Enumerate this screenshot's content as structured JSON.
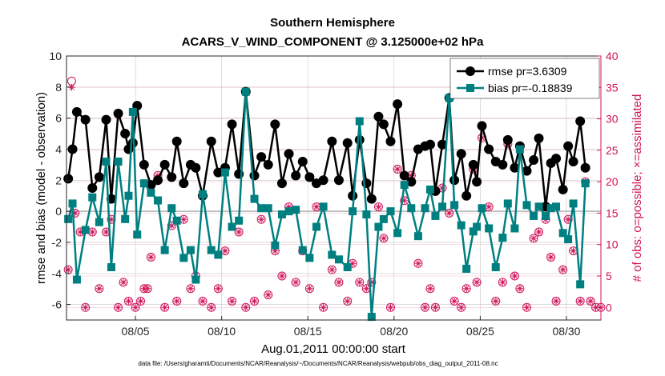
{
  "chart_data": {
    "type": "line",
    "title": "Southern Hemisphere",
    "subtitle": "ACARS_V_WIND_COMPONENT @ 3.125000e+02 hPa",
    "xlabel": "Aug.01,2011 00:00:00 start",
    "ylabel": "rmse and bias (model - observation)",
    "y2label": "# of obs: o=possible; ×=assimilated",
    "footnote": "data file: /Users/gharamti/Documents/NCAR/Reanalysis/~/Documents/NCAR/Reanalysis/webpub/obs_diag_output_2011-08.nc",
    "xlim": [
      1,
      32
    ],
    "ylim": [
      -7,
      10
    ],
    "y2lim": [
      -2,
      40
    ],
    "xticks": [
      5,
      10,
      15,
      20,
      25,
      30
    ],
    "xticklabels": [
      "08/05",
      "08/10",
      "08/15",
      "08/20",
      "08/25",
      "08/30"
    ],
    "yticks": [
      -6,
      -4,
      -2,
      0,
      2,
      4,
      6,
      8,
      10
    ],
    "yticklabels": [
      "-6",
      "-4",
      "-2",
      "0",
      "2",
      "4",
      "6",
      "8",
      "10"
    ],
    "y2ticks": [
      0,
      5,
      10,
      15,
      20,
      25,
      30,
      35,
      40
    ],
    "y2ticklabels": [
      "0",
      "5",
      "10",
      "15",
      "20",
      "25",
      "30",
      "35",
      "40"
    ],
    "grid": true,
    "legend_position": "top-right",
    "colors": {
      "rmse": "#000000",
      "bias": "#007f80",
      "obs": "#d0145a",
      "zero": "#b0b0b0",
      "grid": "#c8c8c8"
    },
    "series": [
      {
        "name": "rmse pr=3.6309",
        "marker": "circle",
        "x": [
          1.1,
          1.35,
          1.6,
          2.1,
          2.5,
          2.9,
          3.3,
          3.6,
          4.0,
          4.4,
          4.6,
          4.85,
          5.1,
          5.5,
          5.9,
          6.3,
          6.7,
          7.1,
          7.4,
          7.8,
          8.2,
          8.5,
          8.9,
          9.4,
          9.8,
          10.2,
          10.6,
          11.0,
          11.4,
          11.9,
          12.3,
          12.7,
          13.1,
          13.5,
          13.9,
          14.3,
          14.7,
          15.1,
          15.5,
          15.9,
          16.4,
          16.8,
          17.3,
          17.6,
          18.0,
          18.4,
          18.7,
          19.1,
          19.4,
          19.8,
          20.2,
          20.6,
          21.0,
          21.4,
          21.8,
          22.1,
          22.4,
          22.8,
          23.2,
          23.5,
          23.9,
          24.2,
          24.6,
          24.8,
          25.1,
          25.5,
          25.9,
          26.3,
          26.6,
          27.0,
          27.3,
          27.7,
          28.1,
          28.4,
          28.8,
          29.1,
          29.4,
          29.8,
          30.1,
          30.4,
          30.8,
          31.1
        ],
        "values": [
          2.1,
          4.0,
          6.4,
          5.9,
          1.5,
          2.2,
          5.9,
          0.8,
          6.3,
          5.0,
          4.0,
          4.4,
          6.8,
          3.0,
          1.7,
          2.0,
          3.0,
          2.2,
          4.5,
          1.8,
          3.0,
          2.8,
          1.0,
          4.5,
          2.5,
          2.8,
          5.6,
          2.4,
          7.7,
          2.3,
          3.5,
          3.0,
          5.6,
          1.8,
          3.7,
          2.3,
          3.2,
          2.2,
          1.8,
          2.0,
          4.5,
          2.0,
          4.4,
          1.0,
          4.6,
          1.8,
          0.8,
          6.1,
          5.6,
          4.5,
          6.9,
          2.3,
          1.9,
          4.0,
          4.2,
          4.3,
          1.3,
          4.3,
          7.3,
          2.0,
          3.7,
          1.0,
          3.0,
          1.9,
          5.5,
          4.0,
          3.2,
          3.0,
          4.6,
          2.8,
          4.2,
          2.6,
          3.3,
          4.7,
          0.3,
          3.1,
          3.4,
          1.4,
          4.2,
          3.2,
          5.8,
          2.8
        ]
      },
      {
        "name": "bias pr=-0.18839",
        "marker": "square",
        "x": [
          1.1,
          1.35,
          1.6,
          2.1,
          2.5,
          2.9,
          3.3,
          3.6,
          4.0,
          4.4,
          4.6,
          4.85,
          5.1,
          5.5,
          5.9,
          6.3,
          6.7,
          7.1,
          7.4,
          7.8,
          8.2,
          8.5,
          8.9,
          9.4,
          9.8,
          10.2,
          10.6,
          11.0,
          11.4,
          11.9,
          12.3,
          12.7,
          13.1,
          13.5,
          13.9,
          14.3,
          14.7,
          15.1,
          15.5,
          15.9,
          16.4,
          16.8,
          17.3,
          17.6,
          18.0,
          18.4,
          18.7,
          19.1,
          19.4,
          19.8,
          20.2,
          20.6,
          21.0,
          21.4,
          21.8,
          22.1,
          22.4,
          22.8,
          23.2,
          23.5,
          23.9,
          24.2,
          24.6,
          24.8,
          25.1,
          25.5,
          25.9,
          26.3,
          26.6,
          27.0,
          27.3,
          27.7,
          28.1,
          28.4,
          28.8,
          29.1,
          29.4,
          29.8,
          30.1,
          30.4,
          30.8,
          31.1
        ],
        "values": [
          -0.5,
          0.5,
          -4.4,
          -1.2,
          0.9,
          -0.7,
          3.2,
          -3.6,
          3.2,
          -0.5,
          1.0,
          6.4,
          -1.5,
          1.8,
          1.2,
          0.7,
          -2.5,
          0.2,
          -0.6,
          -3.0,
          -2.5,
          -4.4,
          1.1,
          -2.5,
          -2.8,
          2.5,
          -1.0,
          -0.6,
          7.7,
          0.8,
          0.2,
          0.2,
          -2.2,
          -0.2,
          0.0,
          0.1,
          -2.5,
          -3.0,
          -1.0,
          0.3,
          -2.8,
          -3.1,
          -3.6,
          0.0,
          5.8,
          -0.2,
          -6.8,
          -1.0,
          -0.5,
          0.0,
          -1.4,
          1.7,
          0.2,
          -1.6,
          0.2,
          1.4,
          -0.3,
          0.3,
          7.3,
          0.4,
          -0.9,
          -3.7,
          -1.3,
          -1.0,
          0.2,
          -1.1,
          -3.6,
          -1.7,
          0.5,
          -1.1,
          4.0,
          0.4,
          -0.3,
          0.3,
          -0.3,
          0.2,
          0.3,
          -1.4,
          -1.8,
          0.5,
          -4.7,
          1.8
        ]
      },
      {
        "name": "# of obs possible",
        "marker": "open-circle",
        "x": [
          1.1,
          1.3,
          1.5,
          1.8,
          2.1,
          2.5,
          2.9,
          3.3,
          3.6,
          4.0,
          4.3,
          4.6,
          5.0,
          5.3,
          5.5,
          5.7,
          5.9,
          6.3,
          6.7,
          7.1,
          7.4,
          7.8,
          8.2,
          8.5,
          8.9,
          9.4,
          9.8,
          10.2,
          10.6,
          11.0,
          11.4,
          11.9,
          12.3,
          12.7,
          13.1,
          13.5,
          13.9,
          14.3,
          14.7,
          15.1,
          15.5,
          15.9,
          16.4,
          16.8,
          17.3,
          17.6,
          18.0,
          18.4,
          18.7,
          19.1,
          19.4,
          19.8,
          20.2,
          20.6,
          21.0,
          21.4,
          21.8,
          22.1,
          22.4,
          22.8,
          23.2,
          23.5,
          23.9,
          24.2,
          24.6,
          24.8,
          25.1,
          25.5,
          25.9,
          26.3,
          26.6,
          27.0,
          27.3,
          27.7,
          28.1,
          28.4,
          28.8,
          29.1,
          29.4,
          29.8,
          30.1,
          30.4,
          30.8,
          31.1,
          31.4,
          31.7,
          32.0
        ],
        "values": [
          6,
          36,
          15,
          12,
          0,
          12,
          3,
          12,
          14,
          0,
          4,
          1,
          0,
          1,
          3,
          3,
          8,
          21,
          0,
          13,
          1,
          14,
          3,
          5,
          1,
          0,
          3,
          9,
          1,
          12,
          0,
          1,
          14,
          2,
          9,
          5,
          16,
          4,
          9,
          3,
          16,
          0,
          6,
          4,
          1,
          7,
          4,
          3,
          4,
          16,
          11,
          0,
          22,
          17,
          21,
          7,
          0,
          3,
          0,
          19,
          15,
          1,
          0,
          3,
          22,
          4,
          27,
          16,
          1,
          4,
          26,
          5,
          3,
          0,
          11,
          12,
          14,
          8,
          1,
          6,
          14,
          9,
          1,
          20,
          1,
          0,
          0
        ]
      },
      {
        "name": "# of obs assimilated",
        "marker": "asterisk",
        "x": [
          1.1,
          1.3,
          1.5,
          1.8,
          2.1,
          2.5,
          2.9,
          3.3,
          3.6,
          4.0,
          4.3,
          4.6,
          5.0,
          5.3,
          5.5,
          5.7,
          5.9,
          6.3,
          6.7,
          7.1,
          7.4,
          7.8,
          8.2,
          8.5,
          8.9,
          9.4,
          9.8,
          10.2,
          10.6,
          11.0,
          11.4,
          11.9,
          12.3,
          12.7,
          13.1,
          13.5,
          13.9,
          14.3,
          14.7,
          15.1,
          15.5,
          15.9,
          16.4,
          16.8,
          17.3,
          17.6,
          18.0,
          18.4,
          18.7,
          19.1,
          19.4,
          19.8,
          20.2,
          20.6,
          21.0,
          21.4,
          21.8,
          22.1,
          22.4,
          22.8,
          23.2,
          23.5,
          23.9,
          24.2,
          24.6,
          24.8,
          25.1,
          25.5,
          25.9,
          26.3,
          26.6,
          27.0,
          27.3,
          27.7,
          28.1,
          28.4,
          28.8,
          29.1,
          29.4,
          29.8,
          30.1,
          30.4,
          30.8,
          31.1,
          31.4,
          31.7,
          32.0
        ],
        "values": [
          6,
          35,
          15,
          12,
          0,
          12,
          3,
          12,
          14,
          0,
          4,
          1,
          0,
          1,
          3,
          3,
          8,
          21,
          0,
          13,
          1,
          14,
          3,
          5,
          1,
          0,
          3,
          9,
          1,
          12,
          0,
          1,
          14,
          2,
          9,
          5,
          16,
          4,
          9,
          3,
          16,
          0,
          6,
          4,
          1,
          7,
          4,
          3,
          4,
          16,
          11,
          0,
          22,
          17,
          21,
          7,
          0,
          3,
          0,
          19,
          15,
          1,
          0,
          3,
          22,
          4,
          27,
          16,
          1,
          4,
          26,
          5,
          3,
          0,
          11,
          12,
          14,
          8,
          1,
          6,
          14,
          9,
          1,
          20,
          1,
          0,
          0
        ]
      }
    ]
  }
}
